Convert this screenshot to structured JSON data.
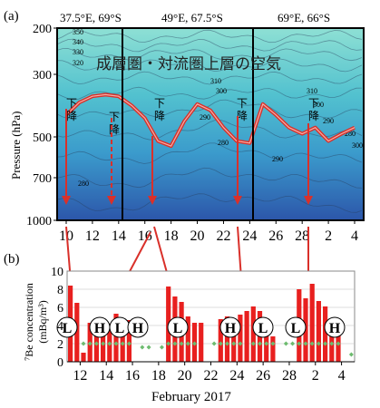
{
  "panel_a": {
    "label": "(a)",
    "site_labels": [
      "37.5°E, 69°S",
      "49°E, 67.5°S",
      "69°E, 66°S"
    ],
    "air_mass_label": "成層圏・対流圏上層の空気",
    "ylabel": "Pressure (hPa)",
    "x_tick_labels": [
      "10",
      "12",
      "14",
      "16",
      "18",
      "20",
      "22",
      "24",
      "26",
      "28",
      "2",
      "4"
    ],
    "y_tick_labels": [
      "200",
      "300",
      "500",
      "700",
      "1000"
    ],
    "contour_labels": [
      "350",
      "340",
      "330",
      "320",
      "310",
      "300",
      "290",
      "280",
      "310",
      "300",
      "290",
      "280",
      "300",
      "290",
      "280"
    ],
    "descent_labels": [
      "下降",
      "下降",
      "下降",
      "下降",
      "下降"
    ],
    "colors": {
      "top": "#7fd8c8",
      "mid": "#4fb6cf",
      "bottom": "#2f5fb0",
      "line": "#d9302a"
    }
  },
  "panel_b": {
    "label": "(b)",
    "ylabel_line1": "⁷Be concentration",
    "ylabel_line2": "(mBq/m³)",
    "xlabel": "February 2017",
    "x_tick_labels": [
      "12",
      "14",
      "16",
      "18",
      "20",
      "22",
      "24",
      "26",
      "28",
      "2",
      "4"
    ],
    "y_tick_labels": [
      "0",
      "2",
      "4",
      "6",
      "8",
      "10"
    ],
    "pressure_markers": [
      "L",
      "H",
      "L",
      "H",
      "L",
      "H",
      "L",
      "L",
      "H"
    ],
    "colors": {
      "bar": "#e8201f",
      "dot": "#6dbb6f",
      "arrow": "#d9302a"
    }
  },
  "chart_data": [
    {
      "type": "area",
      "title": "",
      "ylabel": "Pressure (hPa)",
      "ylim": [
        1000,
        200
      ],
      "x_ticks": [
        "10",
        "12",
        "14",
        "16",
        "18",
        "20",
        "22",
        "24",
        "26",
        "28",
        "2",
        "4"
      ],
      "y_ticks": [
        200,
        300,
        500,
        700,
        1000
      ],
      "site_labels": [
        "37.5°E, 69°S",
        "49°E, 67.5°S",
        "69°E, 66°S"
      ],
      "annotation": "成層圏・対流圏上層の空気",
      "series": [
        {
          "x": [
            "10",
            "11",
            "12",
            "13",
            "14",
            "15",
            "16",
            "17",
            "18",
            "19",
            "20",
            "21",
            "22",
            "23",
            "24",
            "25",
            "26",
            "27",
            "28",
            "1",
            "2",
            "3",
            "4"
          ],
          "values": [
            430,
            390,
            370,
            365,
            370,
            400,
            440,
            520,
            545,
            450,
            395,
            415,
            470,
            520,
            530,
            395,
            430,
            470,
            490,
            470,
            520,
            490,
            470
          ]
        }
      ]
    },
    {
      "type": "bar",
      "title": "",
      "xlabel": "February 2017",
      "ylabel": "⁷Be concentration (mBq/m³)",
      "ylim": [
        0,
        10
      ],
      "categories": [
        "11",
        "11.5",
        "12",
        "12.5",
        "13",
        "13.5",
        "14",
        "14.5",
        "15",
        "15.5",
        "16",
        "16.5",
        "17",
        "17.5",
        "18",
        "18.5",
        "19",
        "19.5",
        "20",
        "20.5",
        "21",
        "21.5",
        "22",
        "22.5",
        "23",
        "23.5",
        "24",
        "24.5",
        "25",
        "25.5",
        "26",
        "26.5",
        "27",
        "27.5",
        "28",
        "28.5",
        "1",
        "1.5",
        "2",
        "2.5",
        "3",
        "3.5",
        "4",
        "4.5"
      ],
      "series": [
        {
          "values": [
            8.4,
            6.5,
            1.0,
            4.3,
            4.7,
            4.2,
            4.2,
            5.3,
            4.5,
            4.6,
            0,
            0,
            0,
            0,
            0,
            8.3,
            7.2,
            6.6,
            5.0,
            4.3,
            4.3,
            0,
            0,
            4.7,
            5.0,
            4.6,
            5.2,
            5.6,
            6.1,
            5.6,
            4.6,
            2.8,
            0,
            0,
            0,
            8.0,
            7.0,
            8.6,
            6.7,
            6.1,
            4.7,
            4.5,
            0,
            0
          ]
        },
        {
          "values": [
            null,
            null,
            2.0,
            2.0,
            2.0,
            2.0,
            2.0,
            2.0,
            2.0,
            2.0,
            null,
            1.6,
            1.6,
            null,
            1.6,
            2.0,
            2.0,
            2.0,
            2.0,
            2.0,
            null,
            null,
            2.0,
            2.0,
            2.0,
            2.0,
            2.0,
            null,
            2.0,
            2.0,
            2.0,
            2.0,
            null,
            2.0,
            2.0,
            2.0,
            2.0,
            2.0,
            2.0,
            2.0,
            2.0,
            2.0,
            null,
            0.8
          ]
        }
      ],
      "pressure_markers": [
        "L",
        "H",
        "L",
        "H",
        "L",
        "H",
        "L",
        "L",
        "H"
      ]
    }
  ]
}
